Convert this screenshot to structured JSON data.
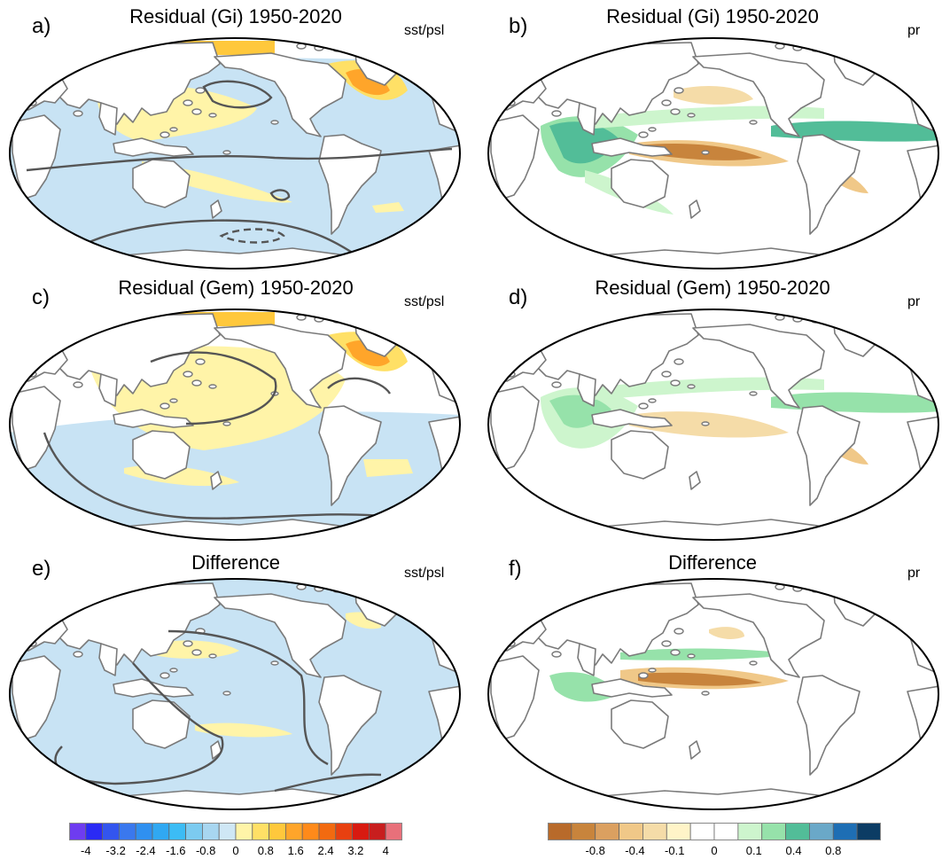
{
  "panels": [
    {
      "label": "a)",
      "title": "Residual (Gi) 1950-2020",
      "var": "sst/psl",
      "kind": "sst",
      "variant": "gi"
    },
    {
      "label": "b)",
      "title": "Residual (Gi) 1950-2020",
      "var": "pr",
      "kind": "pr",
      "variant": "gi"
    },
    {
      "label": "c)",
      "title": "Residual (Gem) 1950-2020",
      "var": "sst/psl",
      "kind": "sst",
      "variant": "gem"
    },
    {
      "label": "d)",
      "title": "Residual (Gem) 1950-2020",
      "var": "pr",
      "kind": "pr",
      "variant": "gem"
    },
    {
      "label": "e)",
      "title": "Difference",
      "var": "sst/psl",
      "kind": "sst",
      "variant": "diff"
    },
    {
      "label": "f)",
      "title": "Difference",
      "var": "pr",
      "kind": "pr",
      "variant": "diff"
    }
  ],
  "colorbars": {
    "sst": {
      "colors": [
        "#6e3cf0",
        "#2a2af5",
        "#3355ee",
        "#3a78ee",
        "#2f90f0",
        "#30a8f2",
        "#3cbcf5",
        "#7ccbf0",
        "#a8d6f0",
        "#cfe7f5",
        "#fff4a8",
        "#ffe066",
        "#ffc83c",
        "#ffa52a",
        "#ff8a1a",
        "#f26a10",
        "#e84010",
        "#d81a10",
        "#c81e1e",
        "#e8707a"
      ],
      "ticks": [
        "-4",
        "-3.2",
        "-2.4",
        "-1.6",
        "-0.8",
        "0",
        "0.8",
        "1.6",
        "2.4",
        "3.2",
        "4"
      ]
    },
    "pr": {
      "colors": [
        "#b86a2a",
        "#c8843c",
        "#dba060",
        "#f0c888",
        "#f5dca8",
        "#fff4c8",
        "#ffffff",
        "#ffffff",
        "#cdf5cd",
        "#96e2aa",
        "#52bd98",
        "#6aa8c8",
        "#1e6eb4",
        "#0c3c64"
      ],
      "ticks": [
        "-0.8",
        "-0.4",
        "-0.1",
        "0",
        "0.1",
        "0.4",
        "0.8"
      ]
    }
  }
}
